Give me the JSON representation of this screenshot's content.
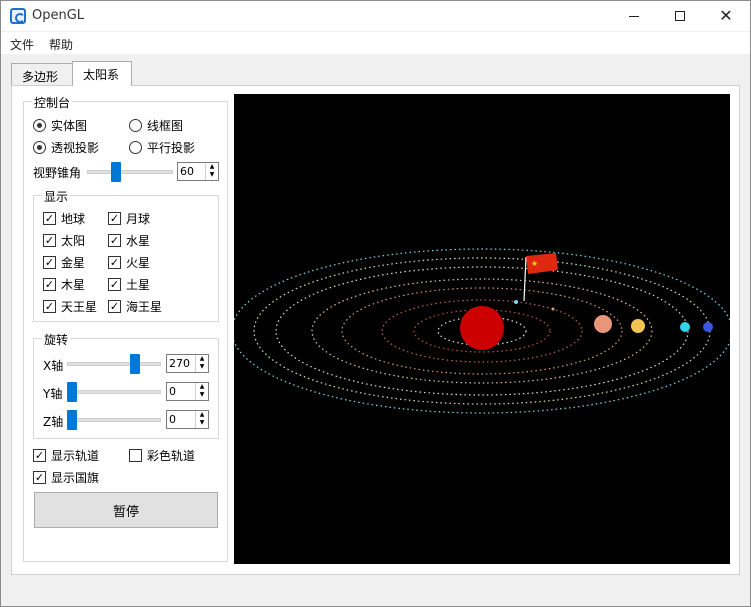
{
  "window": {
    "title": "OpenGL"
  },
  "menu": {
    "items": [
      "文件",
      "帮助"
    ]
  },
  "tabs": [
    {
      "label": "多边形"
    },
    {
      "label": "太阳系"
    }
  ],
  "control": {
    "title": "控制台",
    "render_mode": {
      "solid": "实体图",
      "wireframe": "线框图",
      "selected": "solid"
    },
    "projection": {
      "perspective": "透视投影",
      "parallel": "平行投影",
      "selected": "perspective"
    },
    "fov": {
      "label": "视野锥角",
      "value": "60",
      "slider_fraction": 0.32
    },
    "display": {
      "title": "显示",
      "items": [
        {
          "label": "地球",
          "checked": true
        },
        {
          "label": "月球",
          "checked": true
        },
        {
          "label": "太阳",
          "checked": true
        },
        {
          "label": "水星",
          "checked": true
        },
        {
          "label": "金星",
          "checked": true
        },
        {
          "label": "火星",
          "checked": true
        },
        {
          "label": "木星",
          "checked": true
        },
        {
          "label": "土星",
          "checked": true
        },
        {
          "label": "天王星",
          "checked": true
        },
        {
          "label": "海王星",
          "checked": true
        }
      ]
    },
    "rotation": {
      "title": "旋转",
      "x": {
        "label": "X轴",
        "value": "270",
        "slider_fraction": 0.75
      },
      "y": {
        "label": "Y轴",
        "value": "0",
        "slider_fraction": 0.0
      },
      "z": {
        "label": "Z轴",
        "value": "0",
        "slider_fraction": 0.0
      }
    },
    "options": {
      "show_orbit": {
        "label": "显示轨道",
        "checked": true
      },
      "color_orbit": {
        "label": "彩色轨道",
        "checked": false
      },
      "show_flag": {
        "label": "显示国旗",
        "checked": true
      }
    },
    "pause_label": "暂停"
  },
  "colors": {
    "sun": "#cc0000",
    "mars": "#e8967a",
    "jupiter": "#f2c453",
    "uranus": "#2fd6e8",
    "neptune": "#3b56e0",
    "orbit_outer": "#7fd8e8",
    "orbit_inner": "#e0c8a0",
    "flag": "#de2910"
  }
}
